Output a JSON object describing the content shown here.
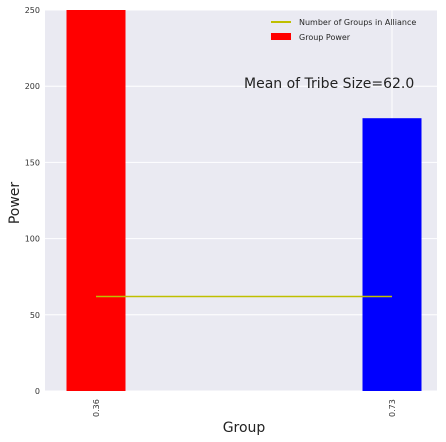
{
  "chart_data": {
    "type": "bar",
    "categories": [
      "0.36",
      "0.73"
    ],
    "bar_values": [
      250,
      179
    ],
    "bar_colors": [
      "#ff0000",
      "#0000ff"
    ],
    "line_series": {
      "name": "Number of Groups in Alliance",
      "x": [
        "0.36",
        "0.73"
      ],
      "values": [
        62,
        62
      ],
      "color": "#bfbf00"
    },
    "bar_series_name": "Group Power",
    "legend": [
      {
        "label": "Number of Groups in Alliance",
        "kind": "line",
        "color": "#bfbf00"
      },
      {
        "label": "Group Power",
        "kind": "patch",
        "color": "#ff0000"
      }
    ],
    "legend_position": "top-right",
    "annotation": "Mean of Tribe Size=62.0",
    "xlabel": "Group",
    "ylabel": "Power",
    "ylim": [
      0,
      250
    ],
    "yticks": [
      0,
      50,
      100,
      150,
      200,
      250
    ],
    "grid": true,
    "background": "#eaeaf2"
  }
}
